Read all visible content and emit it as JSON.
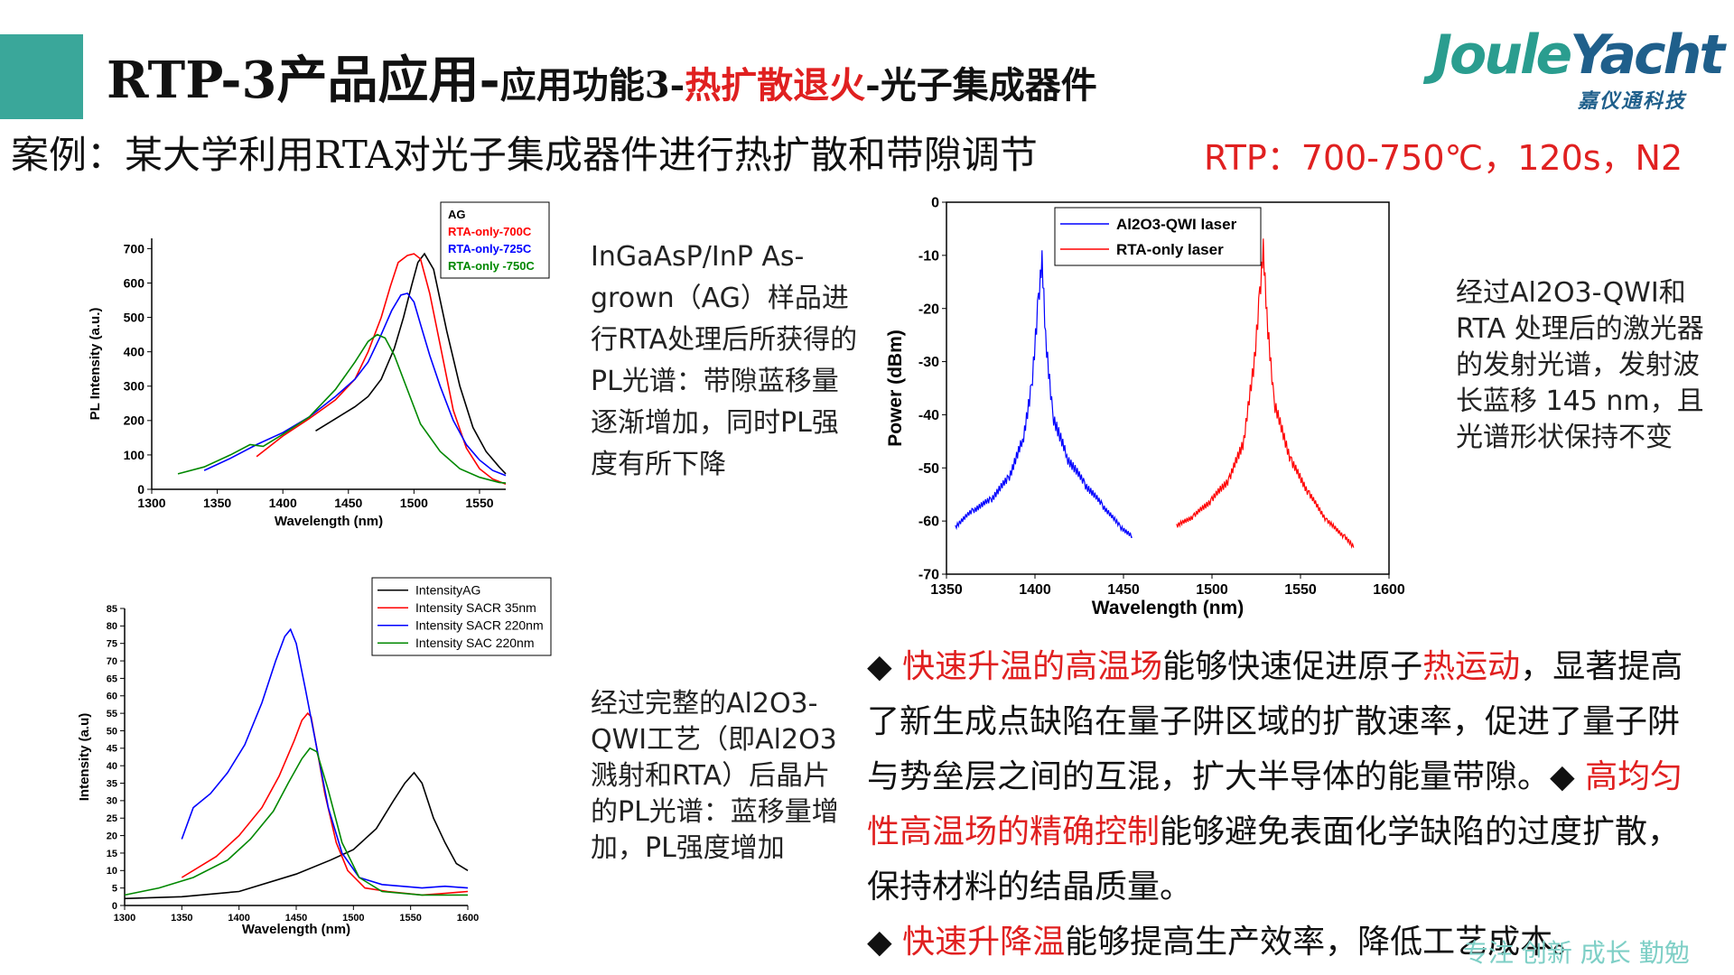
{
  "title": {
    "part1": "RTP-3产品应用-",
    "part2": "应用功能3-",
    "part3": "热扩散退火",
    "part4": "-光子集成器件"
  },
  "logo": {
    "text_a": "Joule",
    "text_b": "Yacht",
    "sub": "嘉仪通科技"
  },
  "case_text": "案例：某大学利用RTA对光子集成器件进行热扩散和带隙调节",
  "rtp_text": "RTP：700-750℃，120s，N2",
  "desc1": "InGaAsP/InP As-grown（AG）样品进行RTA处理后所获得的PL光谱：带隙蓝移量逐渐增加，同时PL强度有所下降",
  "desc2": "经过Al2O3-QWI和 RTA 处理后的激光器的发射光谱，发射波长蓝移 145 nm，且光谱形状保持不变",
  "desc3": "经过完整的Al2O3-QWI工艺（即Al2O3溅射和RTA）后晶片的PL光谱：蓝移量增加，PL强度增加",
  "bullets": {
    "b1_red1": "快速升温的高温场",
    "b1_mid": "能够快速促进原子",
    "b1_red2": "热运动",
    "b1_rest": "，显著提高了新生成点缺陷在量子阱区域的扩散速率，促进了量子阱与势垒层之间的互混，扩大半导体的能量带隙。",
    "b2_red": "高均匀性高温场的精确控制",
    "b2_rest": "能够避免表面化学缺陷的过度扩散，保持材料的结晶质量。",
    "b3_red": "快速升降温",
    "b3_rest": "能够提高生产效率，降低工艺成本。",
    "marker": "◆"
  },
  "footer": "专注 创新 成长 勤勉",
  "colors": {
    "accent": "#3aa79a",
    "red": "#e02020",
    "logo_teal": "#2a9d8f",
    "logo_blue": "#1f5f8b"
  },
  "chart_data": [
    {
      "type": "line",
      "xlabel": "Wavelength (nm)",
      "ylabel": "PL Intensity (a.u.)",
      "xlim": [
        1300,
        1570
      ],
      "ylim": [
        0,
        730
      ],
      "xticks": [
        1300,
        1350,
        1400,
        1450,
        1500,
        1550
      ],
      "yticks": [
        0,
        100,
        200,
        300,
        400,
        500,
        600,
        700
      ],
      "legend": "top-right",
      "series": [
        {
          "name": "AG",
          "color": "#000000",
          "x": [
            1425,
            1440,
            1455,
            1465,
            1475,
            1485,
            1492,
            1498,
            1503,
            1508,
            1515,
            1525,
            1535,
            1545,
            1555,
            1565,
            1570
          ],
          "y": [
            170,
            205,
            240,
            270,
            320,
            410,
            500,
            590,
            660,
            685,
            640,
            460,
            300,
            180,
            110,
            65,
            45
          ]
        },
        {
          "name": "RTA-only-700C",
          "color": "#ff0000",
          "x": [
            1380,
            1400,
            1420,
            1440,
            1455,
            1465,
            1475,
            1482,
            1488,
            1495,
            1500,
            1505,
            1512,
            1520,
            1530,
            1540,
            1550,
            1560,
            1570
          ],
          "y": [
            95,
            155,
            205,
            260,
            320,
            400,
            500,
            590,
            660,
            680,
            685,
            670,
            570,
            420,
            230,
            120,
            60,
            30,
            15
          ]
        },
        {
          "name": "RTA-only-725C",
          "color": "#0000ff",
          "x": [
            1340,
            1360,
            1380,
            1400,
            1420,
            1440,
            1455,
            1465,
            1475,
            1483,
            1490,
            1495,
            1500,
            1505,
            1512,
            1520,
            1530,
            1540,
            1550,
            1560,
            1570
          ],
          "y": [
            55,
            90,
            130,
            165,
            210,
            270,
            320,
            370,
            450,
            520,
            565,
            570,
            545,
            480,
            390,
            300,
            200,
            130,
            85,
            55,
            40
          ]
        },
        {
          "name": "RTA-only -750C",
          "color": "#008800",
          "x": [
            1320,
            1340,
            1360,
            1375,
            1385,
            1400,
            1420,
            1440,
            1455,
            1465,
            1472,
            1478,
            1485,
            1495,
            1505,
            1520,
            1535,
            1550,
            1565,
            1570
          ],
          "y": [
            45,
            65,
            100,
            130,
            125,
            160,
            210,
            290,
            370,
            430,
            450,
            440,
            390,
            290,
            190,
            110,
            60,
            35,
            20,
            18
          ]
        }
      ]
    },
    {
      "type": "line",
      "xlabel": "Wavelength (nm)",
      "ylabel": "Power (dBm)",
      "xlim": [
        1350,
        1600
      ],
      "ylim": [
        -70,
        0
      ],
      "xticks": [
        1350,
        1400,
        1450,
        1500,
        1550,
        1600
      ],
      "yticks": [
        0,
        -10,
        -20,
        -30,
        -40,
        -50,
        -60,
        -70
      ],
      "legend": "top-center",
      "series": [
        {
          "name": "Al2O3-QWI laser",
          "color": "#0000ff",
          "x": [
            1355,
            1365,
            1375,
            1385,
            1393,
            1398,
            1402,
            1404,
            1406,
            1410,
            1418,
            1428,
            1438,
            1448,
            1455
          ],
          "y": [
            -61,
            -58,
            -56,
            -52,
            -45,
            -35,
            -18,
            -10,
            -25,
            -40,
            -48,
            -53,
            -57,
            -61,
            -63
          ]
        },
        {
          "name": "RTA-only laser",
          "color": "#ff0000",
          "x": [
            1480,
            1490,
            1500,
            1510,
            1518,
            1524,
            1527,
            1529,
            1531,
            1535,
            1545,
            1555,
            1565,
            1575,
            1580
          ],
          "y": [
            -61,
            -59,
            -56,
            -52,
            -45,
            -30,
            -18,
            -9,
            -22,
            -38,
            -49,
            -55,
            -60,
            -63,
            -65
          ]
        }
      ]
    },
    {
      "type": "line",
      "xlabel": "Wavelength (nm)",
      "ylabel": "Intensity (a.u)",
      "xlim": [
        1300,
        1600
      ],
      "ylim": [
        0,
        85
      ],
      "xticks": [
        1300,
        1350,
        1400,
        1450,
        1500,
        1550,
        1600
      ],
      "yticks": [
        0,
        5,
        10,
        15,
        20,
        25,
        30,
        35,
        40,
        45,
        50,
        55,
        60,
        65,
        70,
        75,
        80,
        85
      ],
      "legend": "top-right",
      "series": [
        {
          "name": "IntensityAG",
          "color": "#000000",
          "x": [
            1300,
            1350,
            1400,
            1450,
            1480,
            1500,
            1520,
            1535,
            1545,
            1553,
            1560,
            1570,
            1580,
            1590,
            1600
          ],
          "y": [
            2,
            2.5,
            4,
            9,
            13,
            16,
            22,
            30,
            35,
            38,
            35,
            25,
            18,
            12,
            10
          ]
        },
        {
          "name": "Intensity SACR 35nm",
          "color": "#ff0000",
          "x": [
            1350,
            1380,
            1400,
            1420,
            1435,
            1448,
            1455,
            1460,
            1463,
            1468,
            1475,
            1485,
            1495,
            1510,
            1530,
            1560,
            1580,
            1600
          ],
          "y": [
            8,
            14,
            20,
            28,
            37,
            47,
            53,
            55,
            54,
            45,
            32,
            18,
            10,
            5,
            4,
            3,
            3.5,
            4
          ]
        },
        {
          "name": "Intensity SACR 220nm",
          "color": "#0000ff",
          "x": [
            1350,
            1360,
            1375,
            1390,
            1405,
            1420,
            1432,
            1440,
            1445,
            1450,
            1458,
            1468,
            1478,
            1490,
            1505,
            1525,
            1560,
            1580,
            1600
          ],
          "y": [
            19,
            28,
            32,
            38,
            46,
            58,
            70,
            77,
            79,
            75,
            62,
            45,
            28,
            15,
            8,
            6,
            5,
            5.5,
            5
          ]
        },
        {
          "name": "Intensity SAC  220nm",
          "color": "#008800",
          "x": [
            1300,
            1330,
            1360,
            1390,
            1410,
            1430,
            1443,
            1455,
            1462,
            1468,
            1478,
            1490,
            1505,
            1525,
            1560,
            1580,
            1600
          ],
          "y": [
            3,
            5,
            8,
            13,
            19,
            27,
            35,
            42,
            45,
            44,
            33,
            18,
            8,
            4,
            3,
            3,
            3
          ]
        }
      ]
    }
  ]
}
